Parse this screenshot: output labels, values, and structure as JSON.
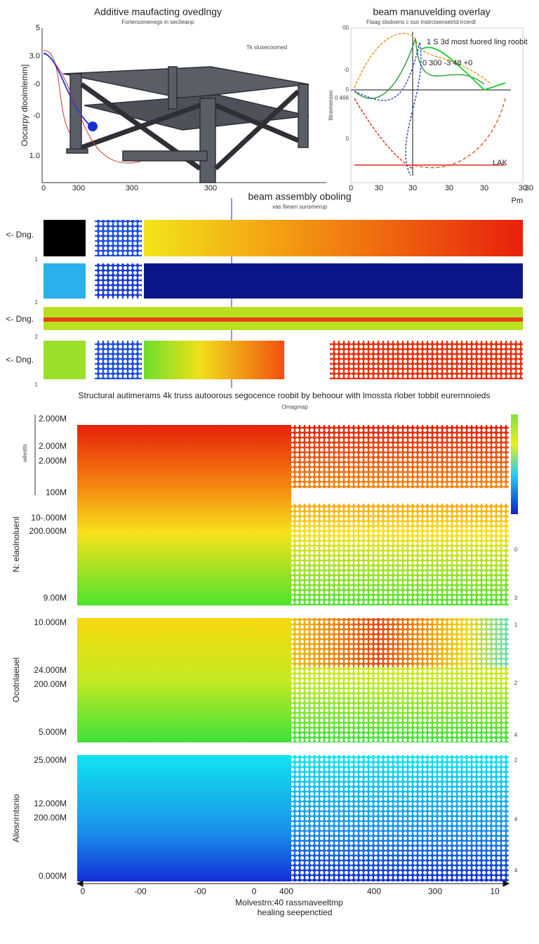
{
  "top_left": {
    "title": "Additive maufacting ovedlngy",
    "subtitle": "Fortersomenegs in sectieanp",
    "y_label": "Oocarpy dlooimlemm]",
    "note": "Tk slusecoomed",
    "yticks": [
      "5",
      "3.0",
      "-0",
      "-0",
      "1.0"
    ],
    "xticks": [
      "0",
      "300",
      "300",
      "300"
    ]
  },
  "top_right": {
    "title": "beam manuvelding overlay",
    "subtitle": "Flaag stsdoens c sso mstrcisensetrtd lrcerdt",
    "y_label": "Itlnemensen",
    "annotations": [
      "1 S 3d most fuored ling roobit",
      "0 300 -3 48 +0",
      "LAK"
    ],
    "yticks": [
      "00",
      "-0",
      "0",
      "0 466",
      "0"
    ],
    "xticks": [
      "0",
      "30",
      "30",
      "30",
      "30",
      "30",
      "30"
    ]
  },
  "middle": {
    "title": "beam assembly oboling",
    "subtitle": "vas fiieam sunsmerup",
    "corner": "Pm",
    "rows": [
      "<- Dng.",
      "<- Dng.",
      "<- Dng."
    ],
    "row_ticks": [
      "1",
      "1",
      "2",
      "1"
    ],
    "caption": "Structural autimerams 4k truss autoorous segocence roobit by behoour with lmossta rlober tobbit eurernnoieds",
    "caption_sub": "Omagmap"
  },
  "bottom": {
    "side_label": "wileslts",
    "panels": [
      {
        "y_label": "N: elaolnoluenl",
        "yticks": [
          "2.000M",
          "2.000M",
          "2.000M",
          "100M",
          "10-.000M",
          "200.000M",
          "9.00M"
        ],
        "right_ticks": [
          "0",
          "3"
        ]
      },
      {
        "y_label": "Ocotnlaeuel",
        "yticks": [
          "10.000M",
          "24.000M",
          "200.00M",
          "5.000M"
        ],
        "right_ticks": [
          "1",
          "2",
          "4"
        ]
      },
      {
        "y_label": "Aliosnrntsnio",
        "yticks": [
          "25.000M",
          "12.000M",
          "200.00M",
          "0.000M"
        ],
        "right_ticks": [
          "2",
          "4",
          "4"
        ]
      }
    ],
    "xticks": [
      "0",
      "-00",
      "-00",
      "0",
      "400",
      "400",
      "300",
      "10"
    ],
    "x_label": "Molvestrn:40 rassmaveeltmp",
    "x_sublabel": "healing seepenctied"
  }
}
